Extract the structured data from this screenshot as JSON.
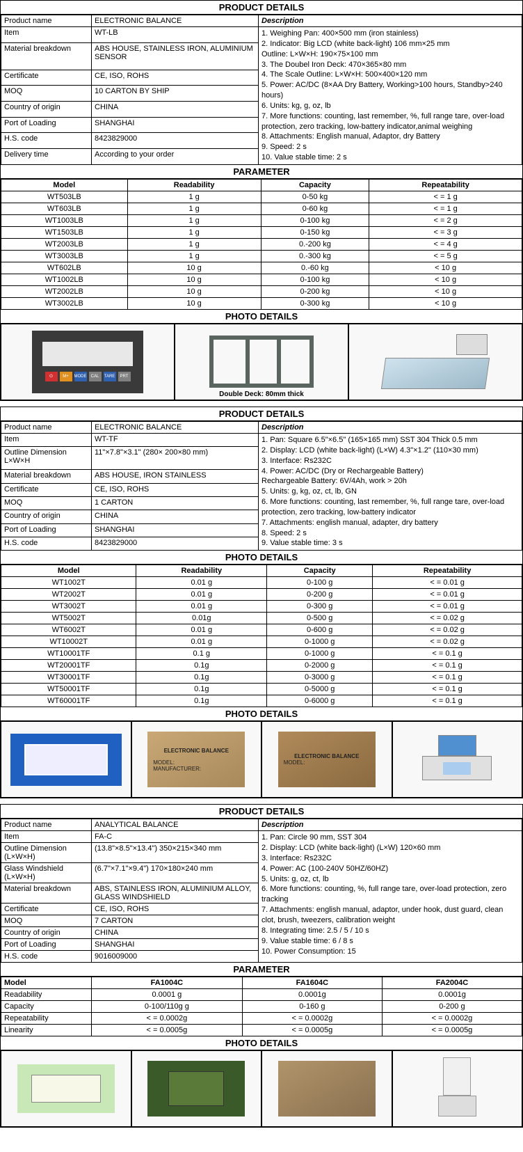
{
  "product1": {
    "title": "PRODUCT DETAILS",
    "desc_header": "Description",
    "rows": [
      {
        "label": "Product name",
        "value": "ELECTRONIC BALANCE"
      },
      {
        "label": "Item",
        "value": "WT-LB"
      },
      {
        "label": "Material breakdown",
        "value": "ABS HOUSE, STAINLESS IRON, ALUMINIUM SENSOR"
      },
      {
        "label": "Certificate",
        "value": "CE, ISO, ROHS"
      },
      {
        "label": "MOQ",
        "value": "10 CARTON BY SHIP"
      },
      {
        "label": "Country of origin",
        "value": "CHINA"
      },
      {
        "label": "Port of Loading",
        "value": "SHANGHAI"
      },
      {
        "label": "H.S. code",
        "value": "8423829000"
      },
      {
        "label": "Delivery time",
        "value": "According to your order"
      }
    ],
    "description": "1. Weighing Pan: 400×500 mm (iron stainless)\n2. Indicator: Big LCD (white back-light) 106 mm×25 mm\n    Outline: L×W×H: 190×75×100 mm\n3. The Doubel Iron Deck:  470×365×80 mm\n4. The Scale Outline: L×W×H: 500×400×120 mm\n5. Power: AC/DC (8×AA Dry Battery, Working>100 hours, Standby>240 hours)\n6. Units: kg, g, oz, lb\n7. More functions: counting, last remember, %, full range tare, over-load protection, zero tracking, low-battery indicator,animal weighing\n8. Attachments: English manual, Adaptor, dry Battery\n9. Speed: 2 s\n10. Value stable time: 2 s",
    "param_title": "PARAMETER",
    "param_headers": [
      "Model",
      "Readability",
      "Capacity",
      "Repeatability"
    ],
    "params": [
      [
        "WT503LB",
        "1 g",
        "0-50 kg",
        "< = 1 g"
      ],
      [
        "WT603LB",
        "1 g",
        "0-60 kg",
        "< = 1 g"
      ],
      [
        "WT1003LB",
        "1 g",
        "0-100 kg",
        "< = 2 g"
      ],
      [
        "WT1503LB",
        "1 g",
        "0-150 kg",
        "< = 3 g"
      ],
      [
        "WT2003LB",
        "1 g",
        "0.-200 kg",
        "< = 4 g"
      ],
      [
        "WT3003LB",
        "1 g",
        "0.-300 kg",
        "< = 5 g"
      ],
      [
        "WT602LB",
        "10 g",
        "0.-60 kg",
        "< 10 g"
      ],
      [
        "WT1002LB",
        "10 g",
        "0-100 kg",
        "< 10 g"
      ],
      [
        "WT2002LB",
        "10 g",
        "0-200 kg",
        "< 10 g"
      ],
      [
        "WT3002LB",
        "10 g",
        "0-300 kg",
        "< 10 g"
      ]
    ],
    "photo_title": "PHOTO DETAILS",
    "deck_caption": "Double Deck: 80mm thick",
    "ind_btns": [
      "⏻",
      "M+",
      "MODE",
      "CAL",
      "TARE",
      "PRT"
    ],
    "ind_colors": [
      "#d03030",
      "#e09020",
      "#3060b0",
      "#808080",
      "#3060b0",
      "#808080"
    ]
  },
  "product2": {
    "title": "PRODUCT DETAILS",
    "desc_header": "Description",
    "rows": [
      {
        "label": "Product name",
        "value": "ELECTRONIC BALANCE"
      },
      {
        "label": "Item",
        "value": "WT-TF"
      },
      {
        "label": "Outline Dimension L×W×H",
        "value": "11\"×7.8\"×3.1\" (280× 200×80 mm)"
      },
      {
        "label": "Material breakdown",
        "value": "ABS HOUSE, IRON STAINLESS"
      },
      {
        "label": "Certificate",
        "value": "CE, ISO, ROHS"
      },
      {
        "label": "MOQ",
        "value": "1 CARTON"
      },
      {
        "label": "Country of origin",
        "value": "CHINA"
      },
      {
        "label": "Port of Loading",
        "value": "SHANGHAI"
      },
      {
        "label": "H.S. code",
        "value": "8423829000"
      }
    ],
    "description": "1. Pan: Square 6.5\"×6.5\" (165×165 mm) SST 304 Thick 0.5 mm\n2. Display: LCD (white back-light) (L×W) 4.3\"×1.2\" (110×30 mm)\n3. Interface: Rs232C\n4. Power: AC/DC (Dry or Rechargeable Battery)\n    Rechargeable Battery: 6V/4Ah, work > 20h\n5. Units: g, kg, oz, ct, lb, GN\n6. More functions: counting, last remember, %, full range tare, over-load protection, zero tracking, low-battery indicator\n7. Attachments: english manual, adapter, dry battery\n8. Speed: 2 s\n9. Value stable time: 3 s",
    "param_title": "PHOTO DETAILS",
    "param_headers": [
      "Model",
      "Readability",
      "Capacity",
      "Repeatability"
    ],
    "params": [
      [
        "WT1002T",
        "0.01 g",
        "0-100 g",
        "< = 0.01 g"
      ],
      [
        "WT2002T",
        "0.01 g",
        "0-200 g",
        "< = 0.01 g"
      ],
      [
        "WT3002T",
        "0.01 g",
        "0-300 g",
        "< = 0.01 g"
      ],
      [
        "WT5002T",
        "0.01g",
        "0-500 g",
        "< = 0.02 g"
      ],
      [
        "WT6002T",
        "0.01 g",
        "0-600 g",
        "< = 0.02 g"
      ],
      [
        "WT10002T",
        "0.01 g",
        "0-1000 g",
        "< = 0.02 g"
      ],
      [
        "WT10001TF",
        "0.1 g",
        "0-1000 g",
        "< = 0.1 g"
      ],
      [
        "WT20001TF",
        "0.1g",
        "0-2000 g",
        "< = 0.1 g"
      ],
      [
        "WT30001TF",
        "0.1g",
        "0-3000 g",
        "< = 0.1 g"
      ],
      [
        "WT50001TF",
        "0.1g",
        "0-5000 g",
        "< = 0.1 g"
      ],
      [
        "WT60001TF",
        "0.1g",
        "0-6000 g",
        "< = 0.1 g"
      ]
    ],
    "photo_title": "PHOTO DETAILS",
    "box_text1": "ELECTRONIC BALANCE",
    "box_text2": "MODEL:",
    "box_text3": "MANUFACTURER:"
  },
  "product3": {
    "title": "PRODUCT DETAILS",
    "desc_header": "Description",
    "rows": [
      {
        "label": "Product name",
        "value": "ANALYTICAL BALANCE"
      },
      {
        "label": "Item",
        "value": "FA-C"
      },
      {
        "label": "Outline Dimension (L×W×H)",
        "value": "(13.8\"×8.5\"×13.4\") 350×215×340 mm"
      },
      {
        "label": "Glass Windshield (L×W×H)",
        "value": "(6.7\"×7.1\"×9.4\") 170×180×240 mm"
      },
      {
        "label": "Material breakdown",
        "value": "ABS, STAINLESS IRON, ALUMINIUM ALLOY, GLASS WINDSHIELD"
      },
      {
        "label": "Certificate",
        "value": "CE, ISO, ROHS"
      },
      {
        "label": "MOQ",
        "value": "7 CARTON"
      },
      {
        "label": "Country of origin",
        "value": "CHINA"
      },
      {
        "label": "Port of Loading",
        "value": "SHANGHAI"
      },
      {
        "label": "H.S. code",
        "value": "9016009000"
      }
    ],
    "description": "1. Pan: Circle 90 mm, SST 304\n2. Display: LCD (white back-light) (L×W) 120×60 mm\n3. Interface: Rs232C\n4. Power: AC (100-240V 50HZ/60HZ)\n5. Units: g, oz, ct, lb\n6. More functions: counting, %, full range tare, over-load protection, zero tracking\n7. Attachments: english manual, adaptor, under hook, dust guard, clean clot, brush, tweezers, calibration weight\n8. Integrating time: 2.5 / 5 / 10 s\n9. Value stable time: 6 / 8 s\n10. Power Consumption: 15",
    "param_title": "PARAMETER",
    "param_headers": [
      "Model",
      "FA1004C",
      "FA1604C",
      "FA2004C"
    ],
    "param_rows": [
      [
        "Readability",
        "0.0001 g",
        "0.0001g",
        "0.0001g"
      ],
      [
        "Capacity",
        "0-100/110g g",
        "0-160 g",
        "0-200 g"
      ],
      [
        "Repeatability",
        "< = 0.0002g",
        "< = 0.0002g",
        "< = 0.0002g"
      ],
      [
        "Linearity",
        "< = 0.0005g",
        "< = 0.0005g",
        "< = 0.0005g"
      ]
    ],
    "photo_title": "PHOTO DETAILS"
  }
}
